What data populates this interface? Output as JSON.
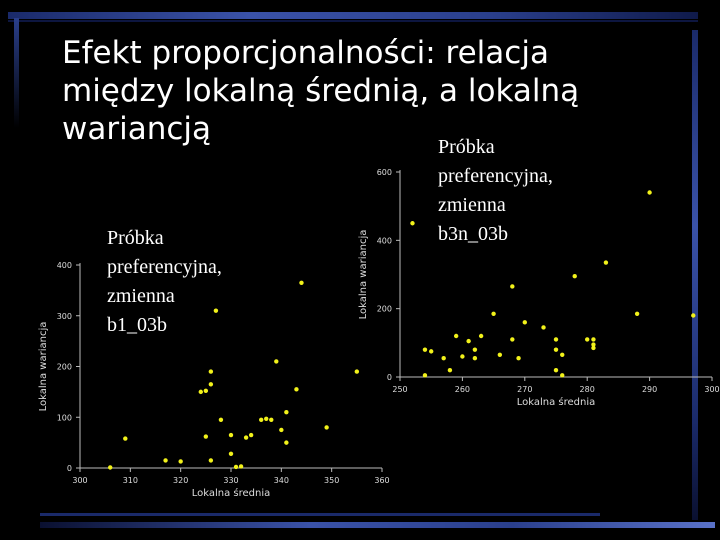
{
  "slide": {
    "title_lines": [
      "Efekt proporcjonalności: relacja",
      "między lokalną średnią, a lokalną",
      "wariancją"
    ],
    "caption_left": [
      "Próbka",
      "preferencyjna,",
      "zmienna",
      "b1_03b"
    ],
    "caption_right": [
      "Próbka",
      "preferencyjna,",
      "zmienna",
      "b3n_03b"
    ]
  },
  "colors": {
    "background": "#000000",
    "accent": "#3a52a8",
    "points": "#f2f21a",
    "text": "#ffffff"
  },
  "chart_data": [
    {
      "type": "scatter",
      "xlabel": "Lokalna średnia",
      "ylabel": "Lokalna wariancja",
      "xlim": [
        300,
        360
      ],
      "ylim": [
        0,
        400
      ],
      "xticks": [
        300,
        310,
        320,
        330,
        340,
        350,
        360
      ],
      "yticks": [
        0,
        100,
        200,
        300,
        400
      ],
      "points": [
        [
          306,
          1
        ],
        [
          309,
          58
        ],
        [
          317,
          15
        ],
        [
          320,
          13
        ],
        [
          324,
          150
        ],
        [
          325,
          62
        ],
        [
          325,
          152
        ],
        [
          326,
          165
        ],
        [
          326,
          190
        ],
        [
          326,
          15
        ],
        [
          327,
          310
        ],
        [
          328,
          95
        ],
        [
          330,
          65
        ],
        [
          330,
          28
        ],
        [
          331,
          2
        ],
        [
          332,
          3
        ],
        [
          333,
          60
        ],
        [
          334,
          65
        ],
        [
          336,
          95
        ],
        [
          337,
          97
        ],
        [
          338,
          95
        ],
        [
          339,
          210
        ],
        [
          340,
          75
        ],
        [
          341,
          110
        ],
        [
          341,
          50
        ],
        [
          343,
          155
        ],
        [
          344,
          365
        ],
        [
          349,
          80
        ],
        [
          355,
          190
        ]
      ]
    },
    {
      "type": "scatter",
      "xlabel": "Lokalna średnia",
      "ylabel": "Lokalna wariancja",
      "xlim": [
        250,
        300
      ],
      "ylim": [
        0,
        600
      ],
      "xticks": [
        250,
        260,
        270,
        280,
        290,
        300
      ],
      "yticks": [
        0,
        200,
        400,
        600
      ],
      "points": [
        [
          252,
          450
        ],
        [
          254,
          80
        ],
        [
          254,
          5
        ],
        [
          255,
          75
        ],
        [
          257,
          55
        ],
        [
          258,
          20
        ],
        [
          259,
          120
        ],
        [
          260,
          60
        ],
        [
          261,
          105
        ],
        [
          262,
          55
        ],
        [
          262,
          80
        ],
        [
          263,
          120
        ],
        [
          265,
          185
        ],
        [
          266,
          65
        ],
        [
          268,
          265
        ],
        [
          268,
          110
        ],
        [
          269,
          55
        ],
        [
          270,
          160
        ],
        [
          273,
          145
        ],
        [
          275,
          20
        ],
        [
          275,
          110
        ],
        [
          275,
          80
        ],
        [
          276,
          5
        ],
        [
          276,
          65
        ],
        [
          278,
          295
        ],
        [
          280,
          110
        ],
        [
          281,
          110
        ],
        [
          281,
          95
        ],
        [
          281,
          85
        ],
        [
          283,
          335
        ],
        [
          288,
          185
        ],
        [
          290,
          540
        ],
        [
          297,
          180
        ]
      ]
    }
  ]
}
